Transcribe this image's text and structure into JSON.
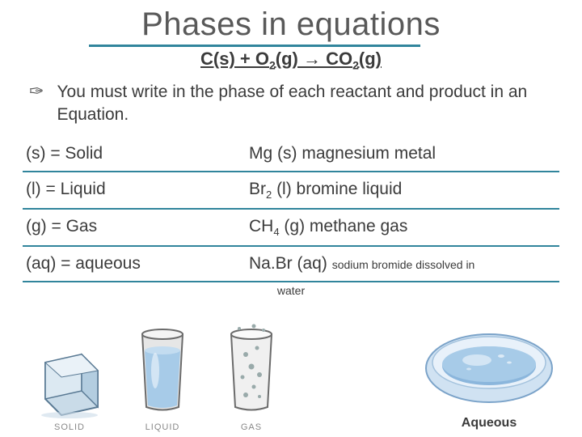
{
  "title": "Phases in equations",
  "equation_html": "C(s) + O<sub>2</sub>(g) → CO<sub>2</sub>(g)",
  "bullet": "You must write in the phase of each reactant and product in an Equation.",
  "table": {
    "rows": [
      {
        "left": "(s) = Solid",
        "right_html": "Mg (s)  magnesium metal"
      },
      {
        "left": "(l) = Liquid",
        "right_html": "Br<sub>2</sub> (l)  bromine liquid"
      },
      {
        "left": "(g) = Gas",
        "right_html": "CH<sub>4</sub> (g)  methane gas"
      },
      {
        "left": "(aq) = aqueous",
        "right_html": "Na.Br (aq) <span class=\"note\">sodium bromide dissolved in</span>"
      }
    ],
    "trailing_note": "water"
  },
  "phase_labels": {
    "solid": "SOLID",
    "liquid": "LIQUID",
    "gas": "GAS"
  },
  "aqueous_caption": "Aqueous",
  "colors": {
    "title_text": "#595959",
    "accent": "#31859c",
    "body_text": "#3b3b3b",
    "ice_fill": "#c9dbe8",
    "ice_edge": "#5a7a94",
    "glass_edge": "#6b6b6b",
    "glass_fill": "#e6e6e6",
    "water_fill": "#a7cbe8",
    "gas_fill": "#d4d4d4",
    "bowl_fill": "#d0e2f2",
    "bowl_water": "#8bb6dc"
  }
}
